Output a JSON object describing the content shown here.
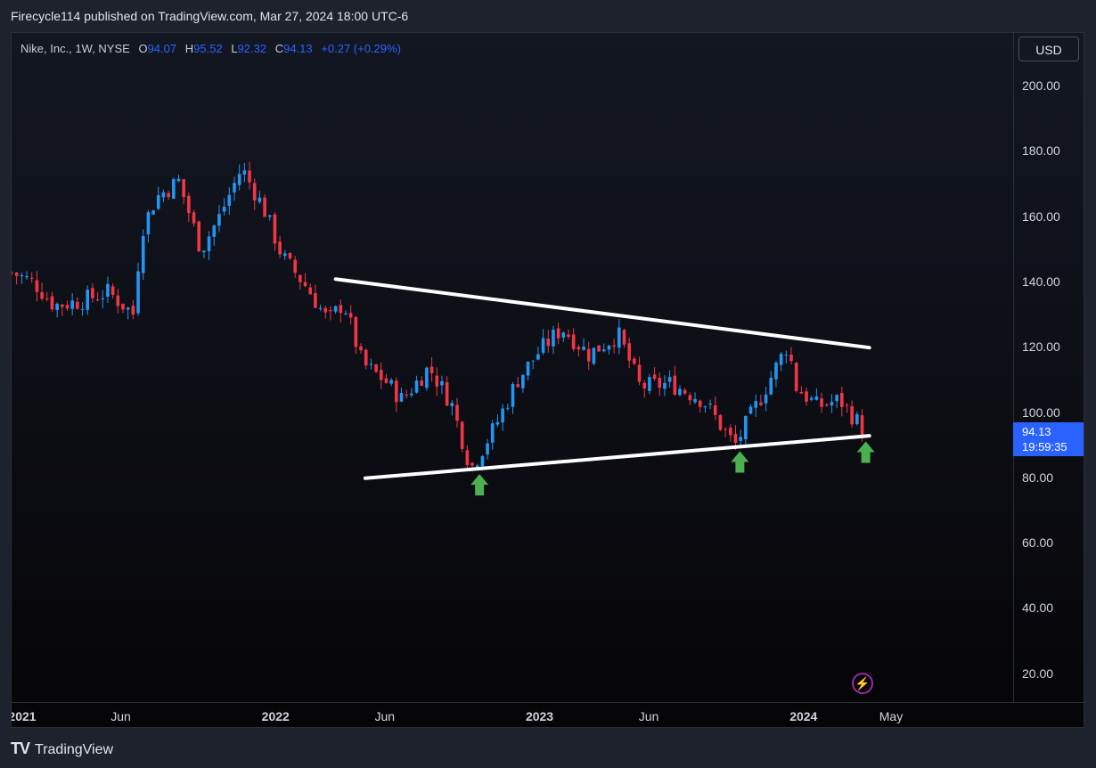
{
  "header": {
    "published_by": "Firecycle114 published on TradingView.com, Mar 27, 2024 18:00 UTC-6"
  },
  "symbol": {
    "name": "Nike, Inc., 1W, NYSE",
    "open_label": "O",
    "open": "94.07",
    "high_label": "H",
    "high": "95.52",
    "low_label": "L",
    "low": "92.32",
    "close_label": "C",
    "close": "94.13",
    "change": "+0.27 (+0.29%)"
  },
  "price_axis": {
    "currency": "USD",
    "last_price": "94.13",
    "countdown": "19:59:35"
  },
  "footer": {
    "brand": "TradingView"
  },
  "colors": {
    "up": "#2196f3",
    "down": "#f23645",
    "accent": "#2962ff",
    "arrow": "#4caf50",
    "trendline": "#ffffff"
  },
  "chart_data": {
    "type": "candlestick",
    "interval": "1W",
    "ylim": [
      15,
      220
    ],
    "y_ticks": [
      "200.00",
      "180.00",
      "160.00",
      "140.00",
      "120.00",
      "100.00",
      "80.00",
      "60.00",
      "40.00",
      "20.00"
    ],
    "x_ticks": [
      {
        "label": "2021",
        "date": "2021-01-01",
        "bold": true
      },
      {
        "label": "Jun",
        "date": "2021-06-01",
        "bold": false
      },
      {
        "label": "2022",
        "date": "2022-01-01",
        "bold": true
      },
      {
        "label": "Jun",
        "date": "2022-06-01",
        "bold": false
      },
      {
        "label": "2023",
        "date": "2023-01-01",
        "bold": true
      },
      {
        "label": "Jun",
        "date": "2023-06-01",
        "bold": false
      },
      {
        "label": "2024",
        "date": "2024-01-01",
        "bold": true
      },
      {
        "label": "May",
        "date": "2024-05-01",
        "bold": false
      }
    ],
    "closes": [
      {
        "date": "2021-01-01",
        "close": 143
      },
      {
        "date": "2021-02-01",
        "close": 140
      },
      {
        "date": "2021-03-01",
        "close": 133
      },
      {
        "date": "2021-04-01",
        "close": 134
      },
      {
        "date": "2021-05-15",
        "close": 137
      },
      {
        "date": "2021-06-20",
        "close": 130
      },
      {
        "date": "2021-06-28",
        "close": 155
      },
      {
        "date": "2021-07-20",
        "close": 166
      },
      {
        "date": "2021-08-20",
        "close": 171
      },
      {
        "date": "2021-09-20",
        "close": 150
      },
      {
        "date": "2021-10-15",
        "close": 160
      },
      {
        "date": "2021-11-15",
        "close": 175
      },
      {
        "date": "2021-12-15",
        "close": 163
      },
      {
        "date": "2022-01-10",
        "close": 148
      },
      {
        "date": "2022-02-15",
        "close": 138
      },
      {
        "date": "2022-03-15",
        "close": 128
      },
      {
        "date": "2022-04-05",
        "close": 134
      },
      {
        "date": "2022-05-01",
        "close": 115
      },
      {
        "date": "2022-06-01",
        "close": 110
      },
      {
        "date": "2022-06-25",
        "close": 104
      },
      {
        "date": "2022-08-01",
        "close": 114
      },
      {
        "date": "2022-09-01",
        "close": 103
      },
      {
        "date": "2022-09-28",
        "close": 83
      },
      {
        "date": "2022-11-01",
        "close": 96
      },
      {
        "date": "2022-12-01",
        "close": 110
      },
      {
        "date": "2023-01-01",
        "close": 119
      },
      {
        "date": "2023-02-01",
        "close": 126
      },
      {
        "date": "2023-03-10",
        "close": 118
      },
      {
        "date": "2023-04-20",
        "close": 124
      },
      {
        "date": "2023-05-20",
        "close": 108
      },
      {
        "date": "2023-07-01",
        "close": 109
      },
      {
        "date": "2023-08-15",
        "close": 104
      },
      {
        "date": "2023-09-28",
        "close": 90
      },
      {
        "date": "2023-11-01",
        "close": 104
      },
      {
        "date": "2023-12-10",
        "close": 121
      },
      {
        "date": "2023-12-22",
        "close": 108
      },
      {
        "date": "2024-01-20",
        "close": 102
      },
      {
        "date": "2024-02-20",
        "close": 104
      },
      {
        "date": "2024-03-27",
        "close": 94.13
      }
    ],
    "trendlines": [
      {
        "name": "resistance",
        "from": {
          "date": "2022-03-25",
          "price": 141
        },
        "to": {
          "date": "2024-04-01",
          "price": 120
        }
      },
      {
        "name": "support",
        "from": {
          "date": "2022-05-05",
          "price": 80
        },
        "to": {
          "date": "2024-04-01",
          "price": 93
        }
      }
    ],
    "arrows": [
      {
        "date": "2022-10-10",
        "price": 78
      },
      {
        "date": "2023-10-05",
        "price": 85
      },
      {
        "date": "2024-03-27",
        "price": 88
      }
    ]
  }
}
